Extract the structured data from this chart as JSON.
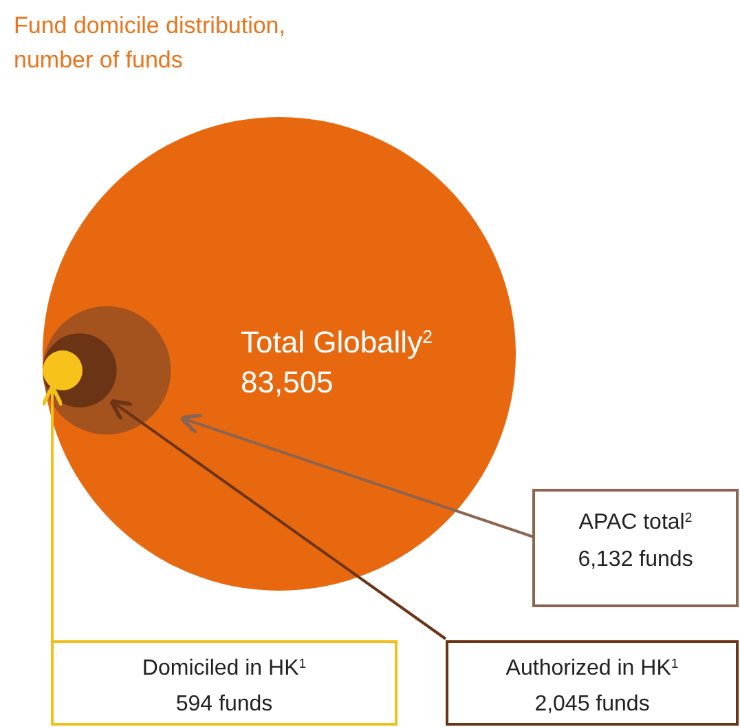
{
  "chart_data": {
    "type": "other",
    "title": "Fund domicile distribution, number of funds",
    "categories": [
      "Total Globally$^{2}$",
      "APAC total$^{2}$",
      "Authorized in HK$^{1}$",
      "Domiciled in HK$^{1}$"
    ],
    "values": [
      83505,
      6132,
      2045,
      594
    ],
    "value_labels": [
      "83,505",
      "6,132 funds",
      "2,045 funds",
      "594 funds"
    ],
    "colors": [
      "#e8680f",
      "#a4521e",
      "#6b3414",
      "#f7c21a"
    ]
  }
}
